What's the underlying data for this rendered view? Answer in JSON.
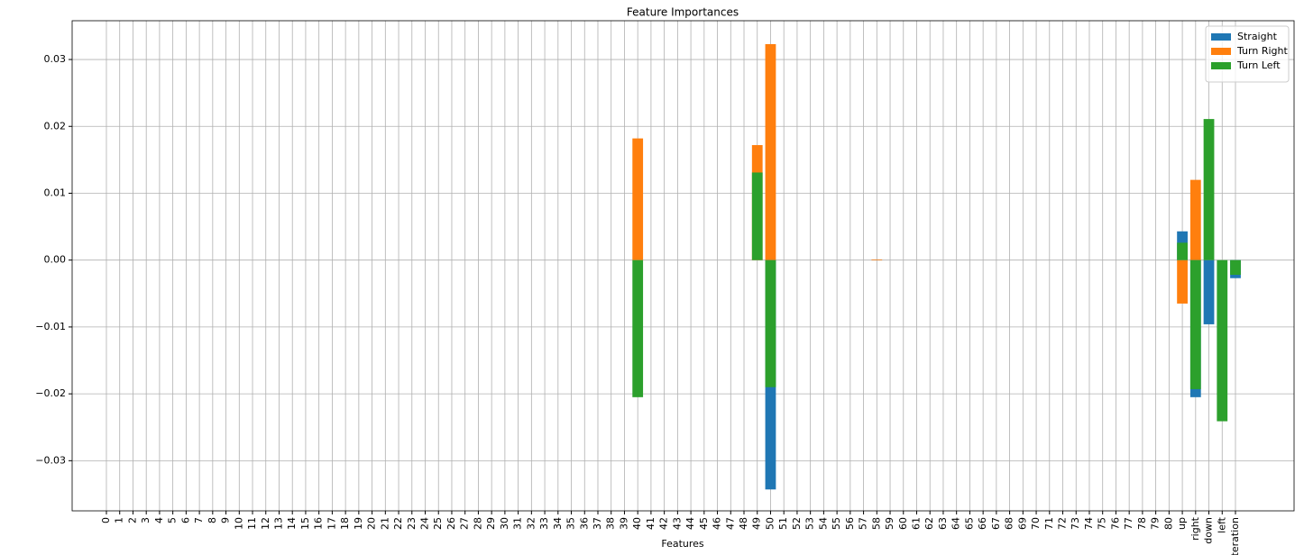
{
  "chart_data": {
    "type": "bar",
    "title": "Feature Importances",
    "xlabel": "Features",
    "categories": [
      "0",
      "1",
      "2",
      "3",
      "4",
      "5",
      "6",
      "7",
      "8",
      "9",
      "10",
      "11",
      "12",
      "13",
      "14",
      "15",
      "16",
      "17",
      "18",
      "19",
      "20",
      "21",
      "22",
      "23",
      "24",
      "25",
      "26",
      "27",
      "28",
      "29",
      "30",
      "31",
      "32",
      "33",
      "34",
      "35",
      "36",
      "37",
      "38",
      "39",
      "40",
      "41",
      "42",
      "43",
      "44",
      "45",
      "46",
      "47",
      "48",
      "49",
      "50",
      "51",
      "52",
      "53",
      "54",
      "55",
      "56",
      "57",
      "58",
      "59",
      "60",
      "61",
      "62",
      "63",
      "64",
      "65",
      "66",
      "67",
      "68",
      "69",
      "70",
      "71",
      "72",
      "73",
      "74",
      "75",
      "76",
      "77",
      "78",
      "79",
      "80",
      "up",
      "right",
      "down",
      "left",
      "iteration"
    ],
    "series": [
      {
        "name": "Straight",
        "color": "#1f77b4",
        "values": [
          0,
          0,
          0,
          0,
          0,
          0,
          0,
          0,
          0,
          0,
          0,
          0,
          0,
          0,
          0,
          0,
          0,
          0,
          0,
          0,
          0,
          0,
          0,
          0,
          0,
          0,
          0,
          0,
          0,
          0,
          0,
          0,
          0,
          0,
          0,
          0,
          0,
          0,
          0,
          0,
          0,
          0,
          0,
          0,
          0,
          0,
          0,
          0,
          0,
          0,
          -0.0343,
          0,
          0,
          0,
          0,
          0,
          0,
          0,
          0,
          0,
          0,
          0,
          0,
          0,
          0,
          0,
          0,
          0,
          0,
          0,
          0,
          0,
          0,
          0,
          0,
          0,
          0,
          0,
          0,
          0,
          0,
          0.0043,
          -0.0205,
          -0.0096,
          0,
          -0.0027
        ]
      },
      {
        "name": "Turn Right",
        "color": "#ff7f0e",
        "values": [
          0,
          0,
          0,
          0,
          0,
          0,
          0,
          0,
          0,
          0,
          0,
          0,
          0,
          0,
          0,
          0,
          0,
          0,
          0,
          0,
          0,
          0,
          0,
          0,
          0,
          0,
          0,
          0,
          0,
          0,
          0,
          0,
          0,
          0,
          0,
          0,
          0,
          0,
          0,
          0,
          0.0182,
          0,
          0,
          0,
          0,
          0,
          0,
          0,
          0,
          0.0172,
          0.0323,
          0,
          0,
          0,
          0,
          0,
          0,
          0,
          0.0001,
          0,
          0,
          0,
          0,
          0,
          0,
          0,
          0,
          0,
          0,
          0,
          0,
          0,
          0,
          0,
          0,
          0,
          0,
          0,
          0,
          0,
          0,
          -0.0065,
          0.012,
          0,
          0,
          0
        ]
      },
      {
        "name": "Turn Left",
        "color": "#2ca02c",
        "values": [
          0,
          0,
          0,
          0,
          0,
          0,
          0,
          0,
          0,
          0,
          0,
          0,
          0,
          0,
          0,
          0,
          0,
          0,
          0,
          0,
          0,
          0,
          0,
          0,
          0,
          0,
          0,
          0,
          0,
          0,
          0,
          0,
          0,
          0,
          0,
          0,
          0,
          0,
          0,
          0,
          -0.0205,
          0,
          0,
          0,
          0,
          0,
          0,
          0,
          0,
          0.0131,
          -0.019,
          0,
          0,
          0,
          0,
          0,
          0,
          0,
          0,
          0,
          0,
          0,
          0,
          0,
          0,
          0,
          0,
          0,
          0,
          0,
          0,
          0,
          0,
          0,
          0,
          0,
          0,
          0,
          0,
          0,
          0,
          0.0026,
          -0.0193,
          0.0211,
          -0.0241,
          -0.0022
        ]
      }
    ],
    "ylim": [
      -0.0375,
      0.0358
    ],
    "yticks": [
      {
        "value": -0.03,
        "label": "−0.03"
      },
      {
        "value": -0.02,
        "label": "−0.02"
      },
      {
        "value": -0.01,
        "label": "−0.01"
      },
      {
        "value": 0,
        "label": "0.00"
      },
      {
        "value": 0.01,
        "label": "0.01"
      },
      {
        "value": 0.02,
        "label": "0.02"
      },
      {
        "value": 0.03,
        "label": "0.03"
      }
    ],
    "grid": true,
    "legend": "upper right"
  }
}
